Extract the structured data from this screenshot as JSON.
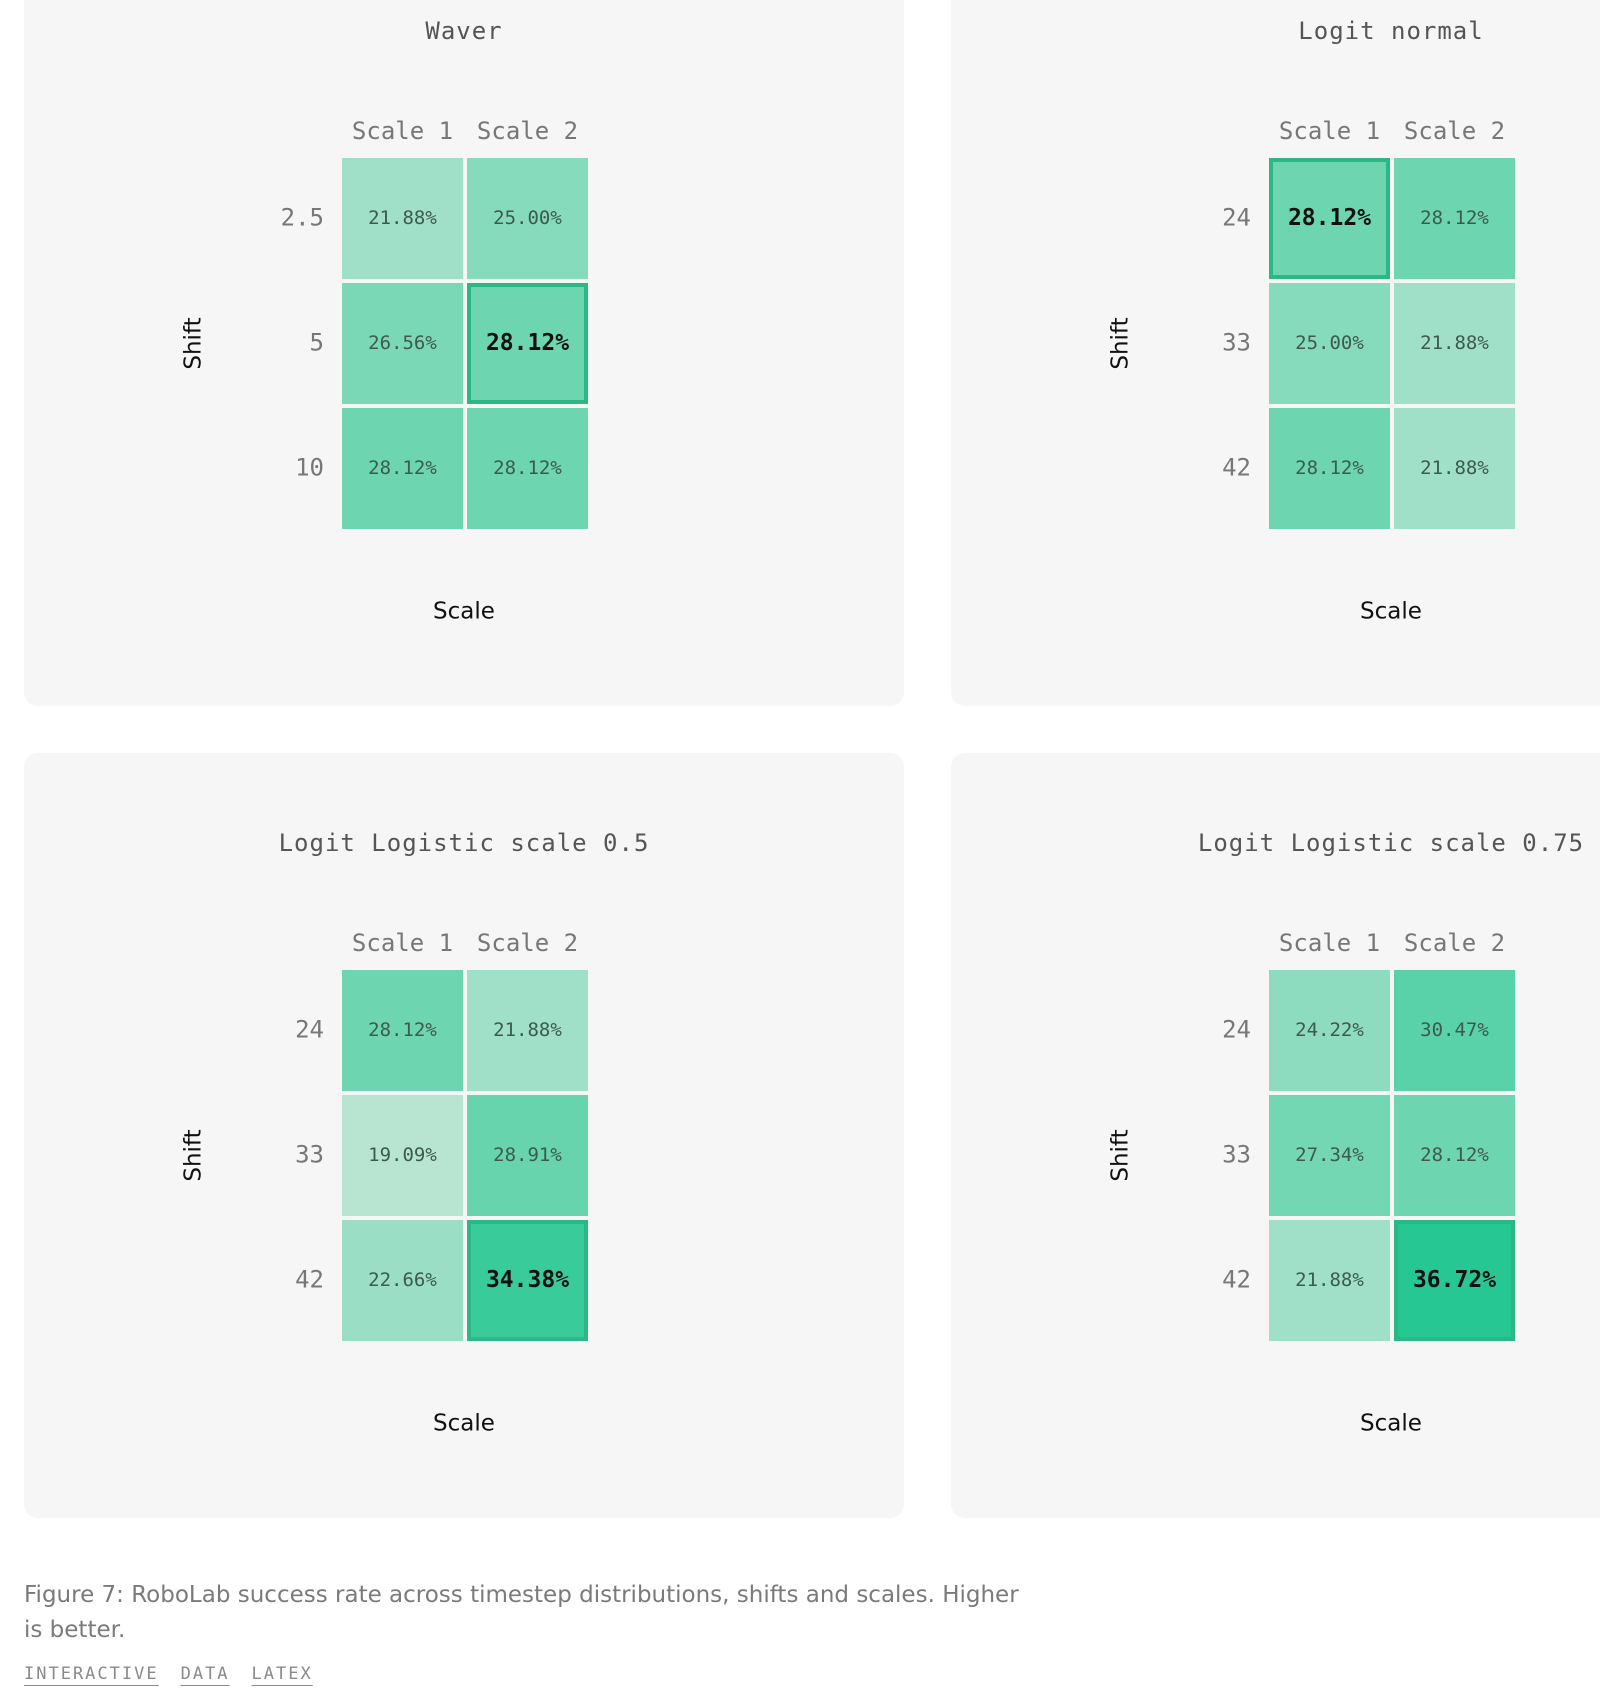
{
  "chart_data": [
    {
      "type": "heatmap",
      "title": "Waver",
      "x_label": "Scale",
      "y_label": "Shift",
      "x_categories": [
        "Scale 1",
        "Scale 2"
      ],
      "y_categories": [
        "2.5",
        "5",
        "10"
      ],
      "values": [
        [
          21.88,
          25.0
        ],
        [
          26.56,
          28.12
        ],
        [
          28.12,
          28.12
        ]
      ],
      "value_labels": [
        [
          "21.88%",
          "25.00%"
        ],
        [
          "26.56%",
          "28.12%"
        ],
        [
          "28.12%",
          "28.12%"
        ]
      ],
      "highlight": [
        1,
        1
      ]
    },
    {
      "type": "heatmap",
      "title": "Logit normal",
      "x_label": "Scale",
      "y_label": "Shift",
      "x_categories": [
        "Scale 1",
        "Scale 2"
      ],
      "y_categories": [
        "24",
        "33",
        "42"
      ],
      "values": [
        [
          28.12,
          28.12
        ],
        [
          25.0,
          21.88
        ],
        [
          28.12,
          21.88
        ]
      ],
      "value_labels": [
        [
          "28.12%",
          "28.12%"
        ],
        [
          "25.00%",
          "21.88%"
        ],
        [
          "28.12%",
          "21.88%"
        ]
      ],
      "highlight": [
        0,
        0
      ]
    },
    {
      "type": "heatmap",
      "title": "Logit Logistic scale 0.5",
      "x_label": "Scale",
      "y_label": "Shift",
      "x_categories": [
        "Scale 1",
        "Scale 2"
      ],
      "y_categories": [
        "24",
        "33",
        "42"
      ],
      "values": [
        [
          28.12,
          21.88
        ],
        [
          19.09,
          28.91
        ],
        [
          22.66,
          34.38
        ]
      ],
      "value_labels": [
        [
          "28.12%",
          "21.88%"
        ],
        [
          "19.09%",
          "28.91%"
        ],
        [
          "22.66%",
          "34.38%"
        ]
      ],
      "highlight": [
        2,
        1
      ]
    },
    {
      "type": "heatmap",
      "title": "Logit Logistic scale 0.75",
      "x_label": "Scale",
      "y_label": "Shift",
      "x_categories": [
        "Scale 1",
        "Scale 2"
      ],
      "y_categories": [
        "24",
        "33",
        "42"
      ],
      "values": [
        [
          24.22,
          30.47
        ],
        [
          27.34,
          28.12
        ],
        [
          21.88,
          36.72
        ]
      ],
      "value_labels": [
        [
          "24.22%",
          "30.47%"
        ],
        [
          "27.34%",
          "28.12%"
        ],
        [
          "21.88%",
          "36.72%"
        ]
      ],
      "highlight": [
        2,
        1
      ]
    }
  ],
  "caption": "Figure 7: RoboLab success rate across timestep distributions, shifts and scales. Higher is better.",
  "links": [
    "INTERACTIVE",
    "DATA",
    "LATEX"
  ]
}
